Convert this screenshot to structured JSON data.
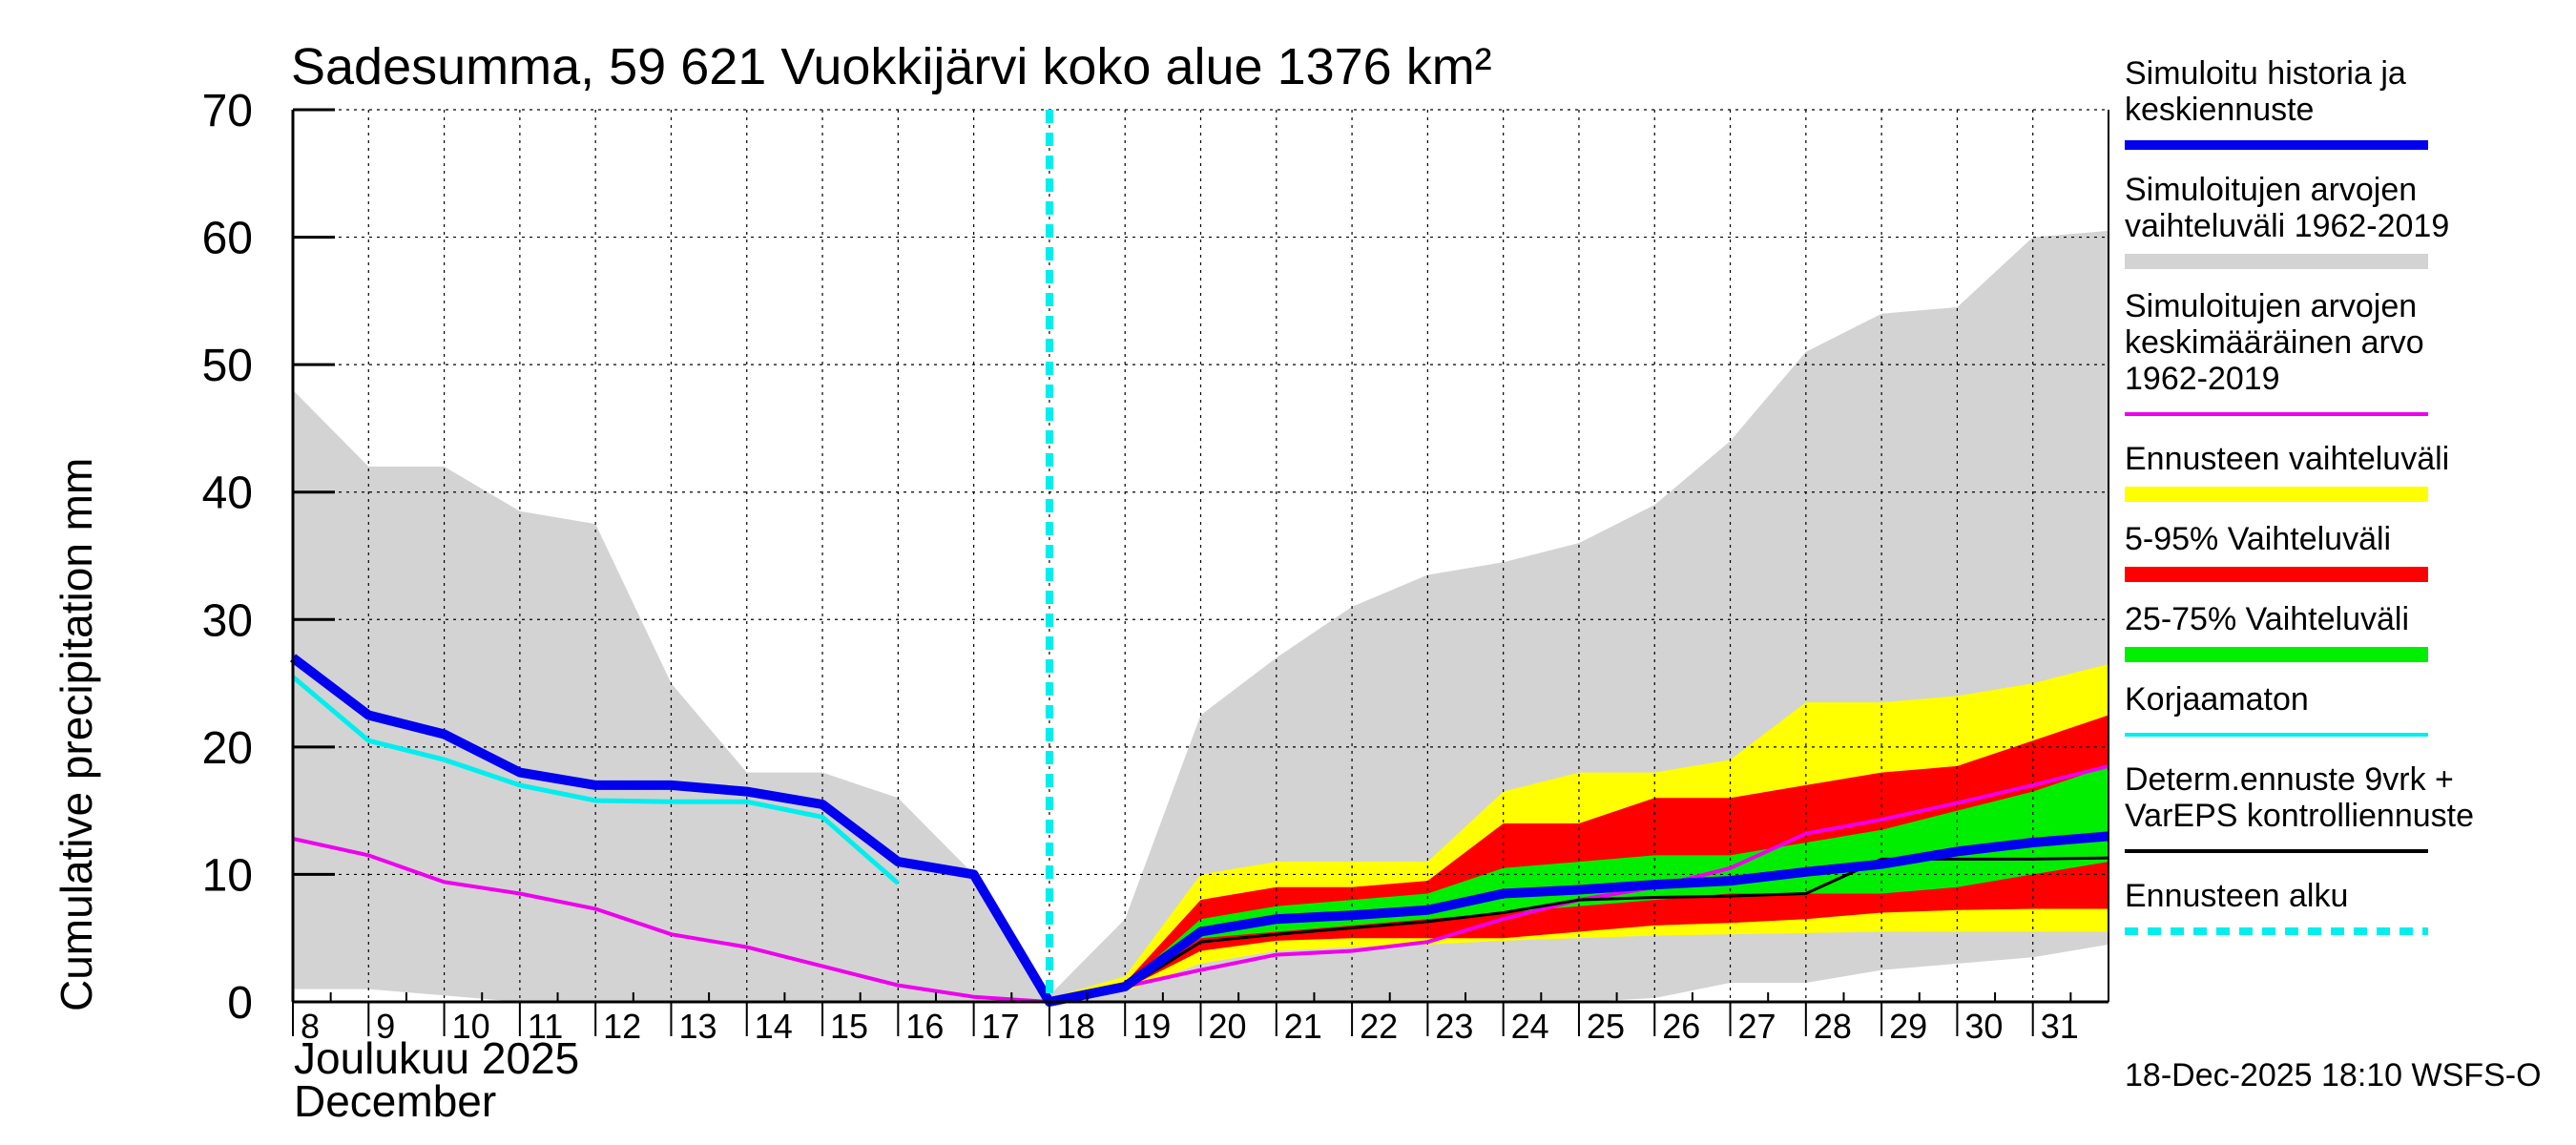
{
  "chart_data": {
    "type": "area",
    "title": "Sadesumma, 59 621 Vuokkijärvi koko alue 1376 km²",
    "ylabel": "Cumulative precipitation   mm",
    "xlabel_lines": [
      "Joulukuu  2025",
      "December"
    ],
    "footer": "18-Dec-2025 18:10 WSFS-O",
    "ylim": [
      0,
      70
    ],
    "yticks": [
      0,
      10,
      20,
      30,
      40,
      50,
      60,
      70
    ],
    "xlim": [
      8,
      32
    ],
    "xticks": [
      8,
      9,
      10,
      11,
      12,
      13,
      14,
      15,
      16,
      17,
      18,
      19,
      20,
      21,
      22,
      23,
      24,
      25,
      26,
      27,
      28,
      29,
      30,
      31
    ],
    "forecast_start_day": 18,
    "colors": {
      "history_band": "#d3d3d3",
      "forecast_range": "#ffff00",
      "p5_95": "#ff0000",
      "p25_75": "#00ee00",
      "simulated": "#0000ee",
      "mean": "#ee00ee",
      "uncorrected": "#00eeee",
      "determ": "#000000",
      "start": "#00eeee"
    },
    "series": {
      "history_band": {
        "x": [
          8,
          9,
          10,
          11,
          12,
          13,
          14,
          15,
          16,
          17,
          18,
          19,
          20,
          21,
          22,
          23,
          24,
          25,
          26,
          27,
          28,
          29,
          30,
          31,
          32
        ],
        "upper": [
          48,
          42,
          42,
          38.5,
          37.5,
          25,
          18,
          18,
          16,
          10,
          0.5,
          6.5,
          22.5,
          27,
          31,
          33.5,
          34.5,
          36,
          39,
          44,
          51,
          54,
          54.5,
          60,
          60.5
        ],
        "lower": [
          1,
          1,
          0.5,
          0,
          0,
          0,
          0,
          0,
          0,
          0,
          0,
          0,
          0,
          0,
          0,
          0,
          0,
          0,
          0.3,
          1.5,
          1.5,
          2.5,
          3,
          3.5,
          4.5
        ]
      },
      "forecast_range": {
        "x": [
          18,
          19,
          20,
          21,
          22,
          23,
          24,
          25,
          26,
          27,
          28,
          29,
          30,
          31,
          32
        ],
        "upper": [
          0.3,
          2,
          10,
          11,
          11,
          11,
          16.5,
          18,
          18,
          19,
          23.5,
          23.5,
          24,
          25,
          26.5
        ],
        "lower": [
          0,
          0.8,
          3,
          4,
          4.3,
          4.5,
          4.8,
          5,
          5.2,
          5.3,
          5.4,
          5.5,
          5.5,
          5.5,
          5.5
        ]
      },
      "p5_95": {
        "x": [
          18,
          19,
          20,
          21,
          22,
          23,
          24,
          25,
          26,
          27,
          28,
          29,
          30,
          31,
          32
        ],
        "upper": [
          0.2,
          1.5,
          8,
          9,
          9,
          9.5,
          14,
          14,
          16,
          16,
          17,
          18,
          18.5,
          20.5,
          22.5
        ],
        "lower": [
          0,
          1,
          4,
          4.8,
          5,
          5,
          5,
          5.5,
          6,
          6.2,
          6.5,
          7,
          7.2,
          7.3,
          7.3
        ]
      },
      "p25_75": {
        "x": [
          18,
          19,
          20,
          21,
          22,
          23,
          24,
          25,
          26,
          27,
          28,
          29,
          30,
          31,
          32
        ],
        "upper": [
          0.1,
          1.3,
          6.5,
          7.5,
          8,
          8.5,
          10.5,
          11,
          11.5,
          11.5,
          12.5,
          13.5,
          15,
          16.5,
          18.5
        ],
        "lower": [
          0,
          1.1,
          5,
          5.5,
          6,
          6.5,
          7,
          7.5,
          8,
          8.5,
          8.5,
          8.5,
          9,
          10,
          11
        ]
      },
      "simulated": {
        "x": [
          8,
          9,
          10,
          11,
          12,
          13,
          14,
          15,
          16,
          17,
          18,
          19,
          20,
          21,
          22,
          23,
          24,
          25,
          26,
          27,
          28,
          29,
          30,
          31,
          32
        ],
        "y": [
          27,
          22.5,
          21,
          18,
          17,
          17,
          16.5,
          15.5,
          11,
          10,
          0,
          1.2,
          5.5,
          6.5,
          6.8,
          7.2,
          8.5,
          8.8,
          9.2,
          9.5,
          10.2,
          10.8,
          11.8,
          12.5,
          13
        ]
      },
      "mean": {
        "x": [
          8,
          9,
          10,
          11,
          12,
          13,
          14,
          15,
          16,
          17,
          18,
          19,
          20,
          21,
          22,
          23,
          24,
          25,
          26,
          27,
          28,
          29,
          30,
          31,
          32
        ],
        "y": [
          12.8,
          11.5,
          9.4,
          8.5,
          7.3,
          5.3,
          4.3,
          2.8,
          1.3,
          0.4,
          0,
          1.2,
          2.5,
          3.7,
          4.0,
          4.7,
          6.5,
          8,
          9,
          10.5,
          13.2,
          14.3,
          15.6,
          17,
          18.5
        ]
      },
      "uncorrected": {
        "x": [
          8,
          9,
          10,
          11,
          12,
          13,
          14,
          15,
          16
        ],
        "y": [
          25.5,
          20.5,
          19,
          17,
          15.8,
          15.7,
          15.7,
          14.5,
          9.3
        ]
      },
      "determ": {
        "x": [
          18,
          19,
          20,
          21,
          22,
          23,
          24,
          25,
          26,
          27,
          28,
          29,
          30,
          31,
          32
        ],
        "y": [
          0,
          1,
          4.7,
          5.3,
          5.8,
          6.3,
          7,
          8,
          8.2,
          8.3,
          8.5,
          11.2,
          11.2,
          11.2,
          11.3
        ]
      }
    },
    "legend": [
      {
        "key": "simulated",
        "lines": [
          "Simuloitu historia ja",
          "keskiennuste"
        ],
        "swatch": "line"
      },
      {
        "key": "history_band",
        "lines": [
          "Simuloitujen arvojen",
          "vaihteluväli 1962-2019"
        ],
        "swatch": "band"
      },
      {
        "key": "mean",
        "lines": [
          "Simuloitujen arvojen",
          "keskimääräinen arvo",
          "   1962-2019"
        ],
        "swatch": "thin"
      },
      {
        "key": "forecast_range",
        "lines": [
          "Ennusteen vaihteluväli"
        ],
        "swatch": "band"
      },
      {
        "key": "p5_95",
        "lines": [
          "5-95% Vaihteluväli"
        ],
        "swatch": "band"
      },
      {
        "key": "p25_75",
        "lines": [
          "25-75% Vaihteluväli"
        ],
        "swatch": "band"
      },
      {
        "key": "uncorrected",
        "lines": [
          "Korjaamaton"
        ],
        "swatch": "thin"
      },
      {
        "key": "determ",
        "lines": [
          "Determ.ennuste 9vrk +",
          "VarEPS kontrolliennuste"
        ],
        "swatch": "thin"
      },
      {
        "key": "start",
        "lines": [
          "Ennusteen alku"
        ],
        "swatch": "dashed"
      }
    ]
  }
}
